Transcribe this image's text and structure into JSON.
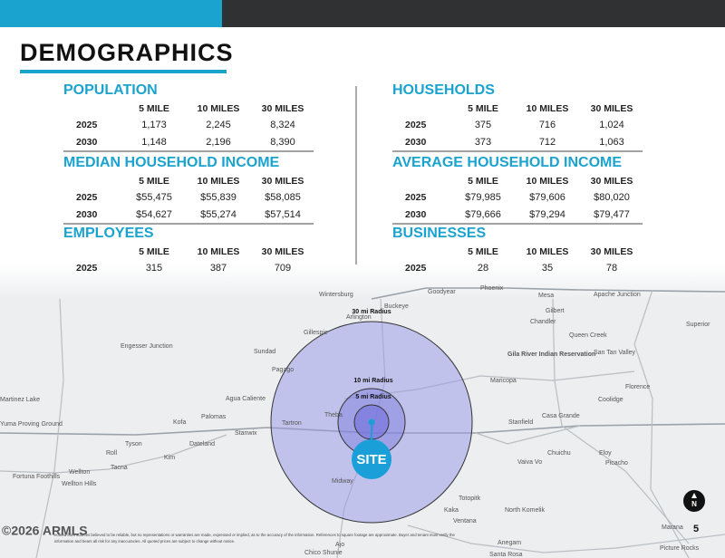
{
  "header": {
    "title": "DEMOGRAPHICS"
  },
  "sections": [
    {
      "title": "POPULATION",
      "columns": [
        "5 MILE",
        "10 MILES",
        "30 MILES"
      ],
      "rows": [
        [
          "2025",
          "1,173",
          "2,245",
          "8,324"
        ],
        [
          "2030",
          "1,148",
          "2,196",
          "8,390"
        ]
      ]
    },
    {
      "title": "HOUSEHOLDS",
      "columns": [
        "5 MILE",
        "10 MILES",
        "30 MILES"
      ],
      "rows": [
        [
          "2025",
          "375",
          "716",
          "1,024"
        ],
        [
          "2030",
          "373",
          "712",
          "1,063"
        ]
      ]
    },
    {
      "title": "MEDIAN HOUSEHOLD INCOME",
      "columns": [
        "5 MILE",
        "10 MILES",
        "30 MILES"
      ],
      "rows": [
        [
          "2025",
          "$55,475",
          "$55,839",
          "$58,085"
        ],
        [
          "2030",
          "$54,627",
          "$55,274",
          "$57,514"
        ]
      ]
    },
    {
      "title": "AVERAGE HOUSEHOLD INCOME",
      "columns": [
        "5 MILE",
        "10 MILES",
        "30 MILES"
      ],
      "rows": [
        [
          "2025",
          "$79,985",
          "$79,606",
          "$80,020"
        ],
        [
          "2030",
          "$79,666",
          "$79,294",
          "$79,477"
        ]
      ]
    },
    {
      "title": "EMPLOYEES",
      "columns": [
        "5 MILE",
        "10 MILES",
        "30 MILES"
      ],
      "rows": [
        [
          "2025",
          "315",
          "387",
          "709"
        ]
      ]
    },
    {
      "title": "BUSINESSES",
      "columns": [
        "5 MILE",
        "10 MILES",
        "30 MILES"
      ],
      "rows": [
        [
          "2025",
          "28",
          "35",
          "78"
        ]
      ]
    }
  ],
  "map": {
    "radius_labels": [
      "30 mi Radius",
      "10 mi Radius",
      "5 mi Radius"
    ],
    "site_label": "SITE",
    "compass": "N",
    "places": [
      "Wintersburg",
      "Goodyear",
      "Phoenix",
      "Mesa",
      "Apache Junction",
      "Arlington",
      "Buckeye",
      "Gilbert",
      "Chandler",
      "Gillespie",
      "Queen Creek",
      "Engesser Junction",
      "Sundad",
      "Gila River Indian Reservation",
      "San Tan Valley",
      "Pagago",
      "Maricopa",
      "Florence",
      "Agua Caliente",
      "Martinez Lake",
      "Coolidge",
      "Theba",
      "Casa Grande",
      "Stanfield",
      "Palomas",
      "Kofa",
      "Tartron",
      "Yuma Proving Ground",
      "Stanwix",
      "Tyson",
      "Dateland",
      "Roll",
      "Chuichu",
      "Eloy",
      "Kim",
      "Vaiva Vo",
      "Picacho",
      "Tacna",
      "Wellton",
      "Fortuna Foothills",
      "Wellton Hills",
      "Midway",
      "Totopitk",
      "Kaka",
      "North Komelik",
      "Ventana",
      "Marana",
      "Ajo",
      "Anegam",
      "Chico Shunie",
      "Santa Rosa",
      "Picture Rocks",
      "Superior"
    ]
  },
  "footer": {
    "watermark": "©2026 ARMLS",
    "disclaimer_1": "ecured from sources believed to be reliable, but no representations or warranties are made, expressed or implied, as to the accuracy of the information. References to square footage are approximate. Buyer and tenant must verify the",
    "disclaimer_2": "information and bears all risk for any inaccuracies. All quoted prices are subject to change without notice.",
    "page": "5"
  }
}
